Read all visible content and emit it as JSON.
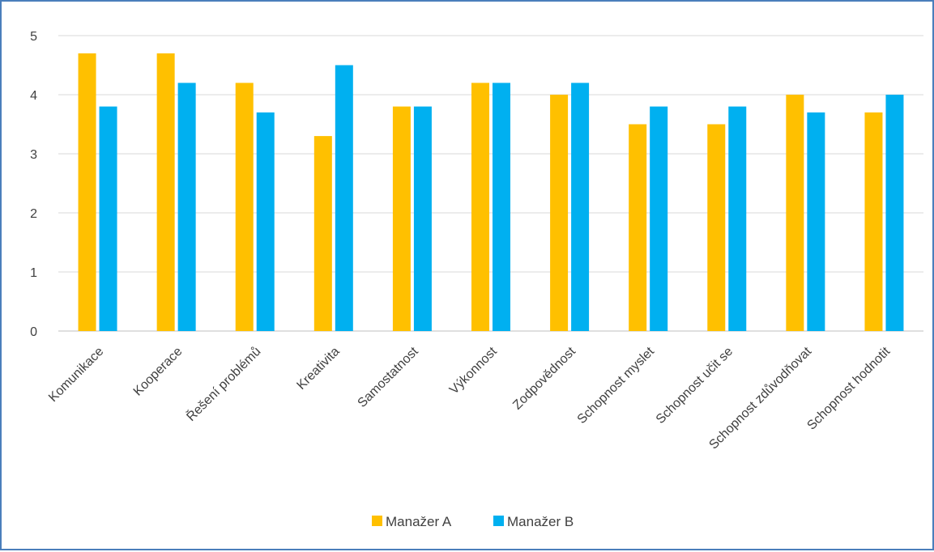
{
  "chart_data": {
    "type": "bar",
    "categories": [
      "Komunikace",
      "Kooperace",
      "Řešení problémů",
      "Kreativita",
      "Samostatnost",
      "Výkonnost",
      "Zodpovědnost",
      "Schopnost myslet",
      "Schopnost učit se",
      "Schopnost zdůvodňovat",
      "Schopnost hodnotit"
    ],
    "series": [
      {
        "name": "Manažer A",
        "color": "#FFC000",
        "values": [
          4.7,
          4.7,
          4.2,
          3.3,
          3.8,
          4.2,
          4.0,
          3.5,
          3.5,
          4.0,
          3.7
        ]
      },
      {
        "name": "Manažer B",
        "color": "#00B0F0",
        "values": [
          3.8,
          4.2,
          3.7,
          4.5,
          3.8,
          4.2,
          4.2,
          3.8,
          3.8,
          3.7,
          4.0
        ]
      }
    ],
    "y_ticks": [
      "0",
      "1",
      "2",
      "3",
      "4",
      "5"
    ],
    "ylim": [
      0,
      5
    ],
    "grid": true,
    "legend_position": "bottom",
    "title": "",
    "xlabel": "",
    "ylabel": ""
  }
}
